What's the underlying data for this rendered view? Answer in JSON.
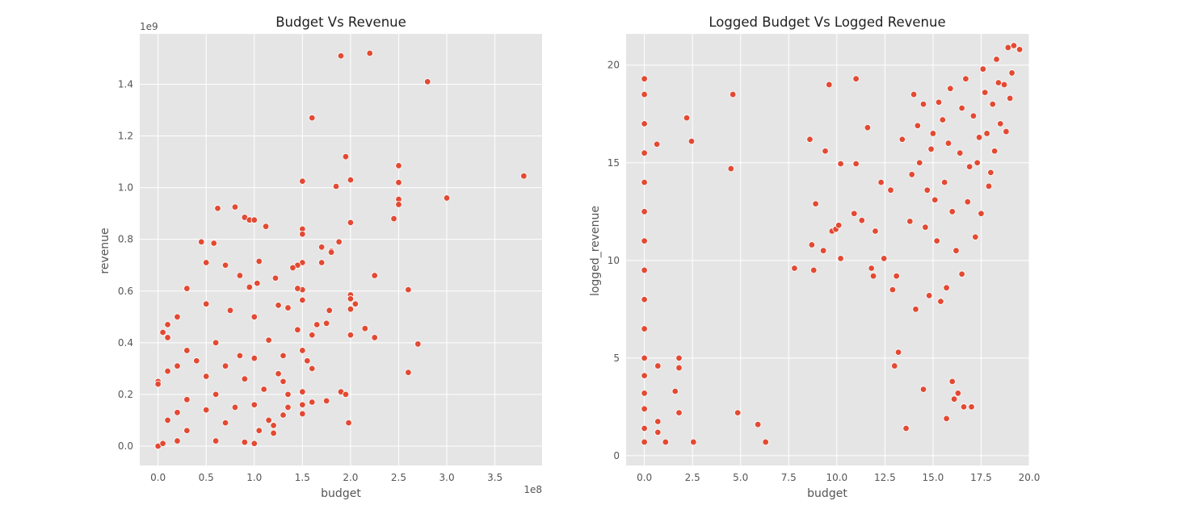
{
  "colors": {
    "plot_background": "#e5e5e5",
    "grid": "#ffffff",
    "marker_fill": "#e24a33",
    "marker_edge": "#ffffff",
    "text": "#555555",
    "title": "#222222"
  },
  "chart_data": [
    {
      "type": "scatter",
      "title": "Budget Vs Revenue",
      "xlabel": "budget",
      "ylabel": "revenue",
      "x_offset_label": "1e8",
      "y_offset_label": "1e9",
      "xlim": [
        -0.19,
        3.99
      ],
      "ylim": [
        -0.075,
        1.595
      ],
      "xticks": [
        0.0,
        0.5,
        1.0,
        1.5,
        2.0,
        2.5,
        3.0,
        3.5
      ],
      "xtick_labels": [
        "0.0",
        "0.5",
        "1.0",
        "1.5",
        "2.0",
        "2.5",
        "3.0",
        "3.5"
      ],
      "yticks": [
        0.0,
        0.2,
        0.4,
        0.6,
        0.8,
        1.0,
        1.2,
        1.4
      ],
      "ytick_labels": [
        "0.0",
        "0.2",
        "0.4",
        "0.6",
        "0.8",
        "1.0",
        "1.2",
        "1.4"
      ],
      "grid": true,
      "legend": "none",
      "x_units": "1e8",
      "y_units": "1e9",
      "points": [
        [
          2.2,
          1.52
        ],
        [
          1.9,
          1.51
        ],
        [
          2.8,
          1.41
        ],
        [
          1.6,
          1.27
        ],
        [
          1.95,
          1.12
        ],
        [
          2.5,
          1.085
        ],
        [
          3.8,
          1.045
        ],
        [
          2.0,
          1.03
        ],
        [
          1.5,
          1.025
        ],
        [
          2.5,
          1.02
        ],
        [
          1.85,
          1.005
        ],
        [
          3.0,
          0.96
        ],
        [
          2.5,
          0.955
        ],
        [
          2.5,
          0.935
        ],
        [
          0.8,
          0.925
        ],
        [
          0.62,
          0.92
        ],
        [
          0.9,
          0.885
        ],
        [
          2.45,
          0.88
        ],
        [
          0.95,
          0.875
        ],
        [
          1.0,
          0.875
        ],
        [
          2.0,
          0.865
        ],
        [
          1.12,
          0.85
        ],
        [
          1.5,
          0.84
        ],
        [
          1.5,
          0.82
        ],
        [
          0.45,
          0.79
        ],
        [
          1.88,
          0.79
        ],
        [
          0.58,
          0.785
        ],
        [
          1.7,
          0.77
        ],
        [
          1.8,
          0.755
        ],
        [
          1.8,
          0.75
        ],
        [
          1.05,
          0.715
        ],
        [
          1.5,
          0.71
        ],
        [
          0.5,
          0.71
        ],
        [
          1.7,
          0.71
        ],
        [
          1.45,
          0.7
        ],
        [
          0.7,
          0.7
        ],
        [
          1.4,
          0.69
        ],
        [
          0.85,
          0.66
        ],
        [
          1.22,
          0.65
        ],
        [
          2.25,
          0.66
        ],
        [
          1.03,
          0.63
        ],
        [
          0.95,
          0.615
        ],
        [
          0.3,
          0.61
        ],
        [
          1.5,
          0.605
        ],
        [
          1.45,
          0.61
        ],
        [
          2.6,
          0.605
        ],
        [
          2.0,
          0.585
        ],
        [
          2.0,
          0.57
        ],
        [
          1.5,
          0.565
        ],
        [
          2.05,
          0.55
        ],
        [
          2.0,
          0.53
        ],
        [
          0.5,
          0.55
        ],
        [
          1.25,
          0.545
        ],
        [
          1.35,
          0.535
        ],
        [
          0.75,
          0.525
        ],
        [
          1.78,
          0.525
        ],
        [
          1.0,
          0.5
        ],
        [
          0.2,
          0.5
        ],
        [
          0.1,
          0.47
        ],
        [
          1.75,
          0.475
        ],
        [
          1.65,
          0.47
        ],
        [
          2.15,
          0.455
        ],
        [
          1.45,
          0.45
        ],
        [
          0.05,
          0.44
        ],
        [
          2.0,
          0.43
        ],
        [
          2.25,
          0.42
        ],
        [
          0.1,
          0.42
        ],
        [
          1.6,
          0.43
        ],
        [
          2.7,
          0.395
        ],
        [
          0.6,
          0.4
        ],
        [
          1.15,
          0.41
        ],
        [
          1.5,
          0.37
        ],
        [
          0.3,
          0.37
        ],
        [
          0.85,
          0.35
        ],
        [
          0.4,
          0.33
        ],
        [
          1.3,
          0.35
        ],
        [
          1.0,
          0.34
        ],
        [
          1.55,
          0.33
        ],
        [
          0.2,
          0.31
        ],
        [
          0.7,
          0.31
        ],
        [
          1.6,
          0.3
        ],
        [
          0.1,
          0.29
        ],
        [
          1.25,
          0.28
        ],
        [
          0.5,
          0.27
        ],
        [
          2.6,
          0.285
        ],
        [
          0.9,
          0.26
        ],
        [
          1.3,
          0.25
        ],
        [
          0.0,
          0.25
        ],
        [
          0.0,
          0.24
        ],
        [
          1.1,
          0.22
        ],
        [
          1.9,
          0.21
        ],
        [
          1.5,
          0.21
        ],
        [
          1.35,
          0.2
        ],
        [
          1.95,
          0.2
        ],
        [
          0.6,
          0.2
        ],
        [
          1.75,
          0.175
        ],
        [
          1.6,
          0.17
        ],
        [
          1.5,
          0.16
        ],
        [
          0.3,
          0.18
        ],
        [
          1.0,
          0.16
        ],
        [
          0.8,
          0.15
        ],
        [
          1.35,
          0.15
        ],
        [
          1.3,
          0.12
        ],
        [
          1.5,
          0.125
        ],
        [
          0.5,
          0.14
        ],
        [
          1.15,
          0.1
        ],
        [
          0.2,
          0.13
        ],
        [
          1.2,
          0.08
        ],
        [
          1.98,
          0.09
        ],
        [
          0.1,
          0.1
        ],
        [
          0.7,
          0.09
        ],
        [
          1.05,
          0.06
        ],
        [
          1.2,
          0.05
        ],
        [
          0.3,
          0.06
        ],
        [
          0.0,
          0.0
        ],
        [
          0.05,
          0.01
        ],
        [
          0.9,
          0.015
        ],
        [
          1.0,
          0.01
        ],
        [
          0.2,
          0.02
        ],
        [
          0.6,
          0.02
        ]
      ]
    },
    {
      "type": "scatter",
      "title": "Logged Budget Vs Logged Revenue",
      "xlabel": "budget",
      "ylabel": "logged_revenue",
      "xlim": [
        -0.95,
        20.0
      ],
      "ylim": [
        -0.5,
        21.6
      ],
      "xticks": [
        0.0,
        2.5,
        5.0,
        7.5,
        10.0,
        12.5,
        15.0,
        17.5,
        20.0
      ],
      "xtick_labels": [
        "0.0",
        "2.5",
        "5.0",
        "7.5",
        "10.0",
        "12.5",
        "15.0",
        "17.5",
        "20.0"
      ],
      "yticks": [
        0,
        5,
        10,
        15,
        20
      ],
      "ytick_labels": [
        "0",
        "5",
        "10",
        "15",
        "20"
      ],
      "grid": true,
      "legend": "none",
      "points": [
        [
          0.0,
          19.3
        ],
        [
          0.0,
          18.5
        ],
        [
          0.0,
          17.0
        ],
        [
          0.0,
          15.5
        ],
        [
          0.0,
          14.0
        ],
        [
          0.0,
          12.5
        ],
        [
          0.0,
          11.0
        ],
        [
          0.0,
          9.5
        ],
        [
          0.0,
          8.0
        ],
        [
          0.0,
          6.5
        ],
        [
          0.0,
          5.0
        ],
        [
          0.0,
          4.1
        ],
        [
          0.0,
          3.2
        ],
        [
          0.0,
          2.4
        ],
        [
          0.0,
          1.4
        ],
        [
          0.0,
          0.7
        ],
        [
          0.65,
          15.95
        ],
        [
          0.7,
          4.6
        ],
        [
          0.7,
          1.75
        ],
        [
          0.7,
          1.2
        ],
        [
          1.1,
          0.7
        ],
        [
          2.2,
          17.3
        ],
        [
          2.45,
          16.1
        ],
        [
          1.6,
          3.3
        ],
        [
          1.8,
          2.2
        ],
        [
          1.8,
          4.5
        ],
        [
          1.8,
          5.0
        ],
        [
          2.55,
          0.7
        ],
        [
          4.6,
          18.5
        ],
        [
          4.5,
          14.7
        ],
        [
          4.85,
          2.2
        ],
        [
          5.9,
          1.6
        ],
        [
          6.3,
          0.7
        ],
        [
          7.8,
          9.6
        ],
        [
          8.6,
          16.2
        ],
        [
          8.7,
          10.8
        ],
        [
          8.8,
          9.5
        ],
        [
          8.9,
          12.9
        ],
        [
          9.3,
          10.5
        ],
        [
          9.6,
          19.0
        ],
        [
          9.4,
          15.6
        ],
        [
          9.75,
          11.5
        ],
        [
          9.95,
          11.6
        ],
        [
          10.1,
          11.8
        ],
        [
          10.2,
          10.1
        ],
        [
          10.2,
          14.95
        ],
        [
          11.0,
          19.3
        ],
        [
          11.0,
          14.95
        ],
        [
          10.9,
          12.4
        ],
        [
          11.3,
          12.05
        ],
        [
          11.6,
          16.8
        ],
        [
          11.8,
          9.6
        ],
        [
          11.9,
          9.2
        ],
        [
          12.0,
          11.5
        ],
        [
          12.3,
          14.0
        ],
        [
          12.45,
          10.1
        ],
        [
          12.9,
          8.5
        ],
        [
          13.0,
          4.6
        ],
        [
          13.1,
          9.2
        ],
        [
          13.2,
          5.3
        ],
        [
          13.6,
          1.4
        ],
        [
          13.8,
          12.0
        ],
        [
          14.0,
          18.5
        ],
        [
          14.1,
          7.5
        ],
        [
          14.3,
          15.0
        ],
        [
          14.5,
          3.4
        ],
        [
          14.5,
          18.0
        ],
        [
          14.7,
          13.6
        ],
        [
          14.8,
          8.2
        ],
        [
          15.0,
          16.5
        ],
        [
          15.2,
          11.0
        ],
        [
          15.4,
          7.9
        ],
        [
          15.5,
          17.2
        ],
        [
          15.6,
          14.0
        ],
        [
          15.7,
          8.6
        ],
        [
          15.7,
          1.9
        ],
        [
          15.9,
          18.8
        ],
        [
          16.0,
          3.8
        ],
        [
          16.0,
          12.5
        ],
        [
          16.1,
          2.9
        ],
        [
          16.3,
          3.2
        ],
        [
          16.4,
          15.5
        ],
        [
          16.5,
          9.3
        ],
        [
          16.6,
          2.5
        ],
        [
          16.7,
          19.3
        ],
        [
          16.8,
          13.0
        ],
        [
          17.0,
          2.5
        ],
        [
          17.1,
          17.4
        ],
        [
          17.3,
          15.0
        ],
        [
          17.5,
          12.4
        ],
        [
          17.6,
          19.8
        ],
        [
          17.8,
          16.5
        ],
        [
          18.0,
          14.5
        ],
        [
          18.1,
          18.0
        ],
        [
          18.3,
          20.3
        ],
        [
          18.5,
          17.0
        ],
        [
          18.7,
          19.0
        ],
        [
          18.9,
          20.9
        ],
        [
          19.0,
          18.3
        ],
        [
          19.2,
          21.0
        ],
        [
          19.5,
          20.8
        ],
        [
          12.8,
          13.6
        ],
        [
          13.4,
          16.2
        ],
        [
          13.9,
          14.4
        ],
        [
          14.2,
          16.9
        ],
        [
          14.6,
          11.7
        ],
        [
          14.9,
          15.7
        ],
        [
          15.1,
          13.1
        ],
        [
          15.3,
          18.1
        ],
        [
          15.8,
          16.0
        ],
        [
          16.2,
          10.5
        ],
        [
          16.5,
          17.8
        ],
        [
          16.9,
          14.8
        ],
        [
          17.2,
          11.2
        ],
        [
          17.4,
          16.3
        ],
        [
          17.7,
          18.6
        ],
        [
          17.9,
          13.8
        ],
        [
          18.2,
          15.6
        ],
        [
          18.4,
          19.1
        ],
        [
          18.8,
          16.6
        ],
        [
          19.1,
          19.6
        ]
      ]
    }
  ]
}
